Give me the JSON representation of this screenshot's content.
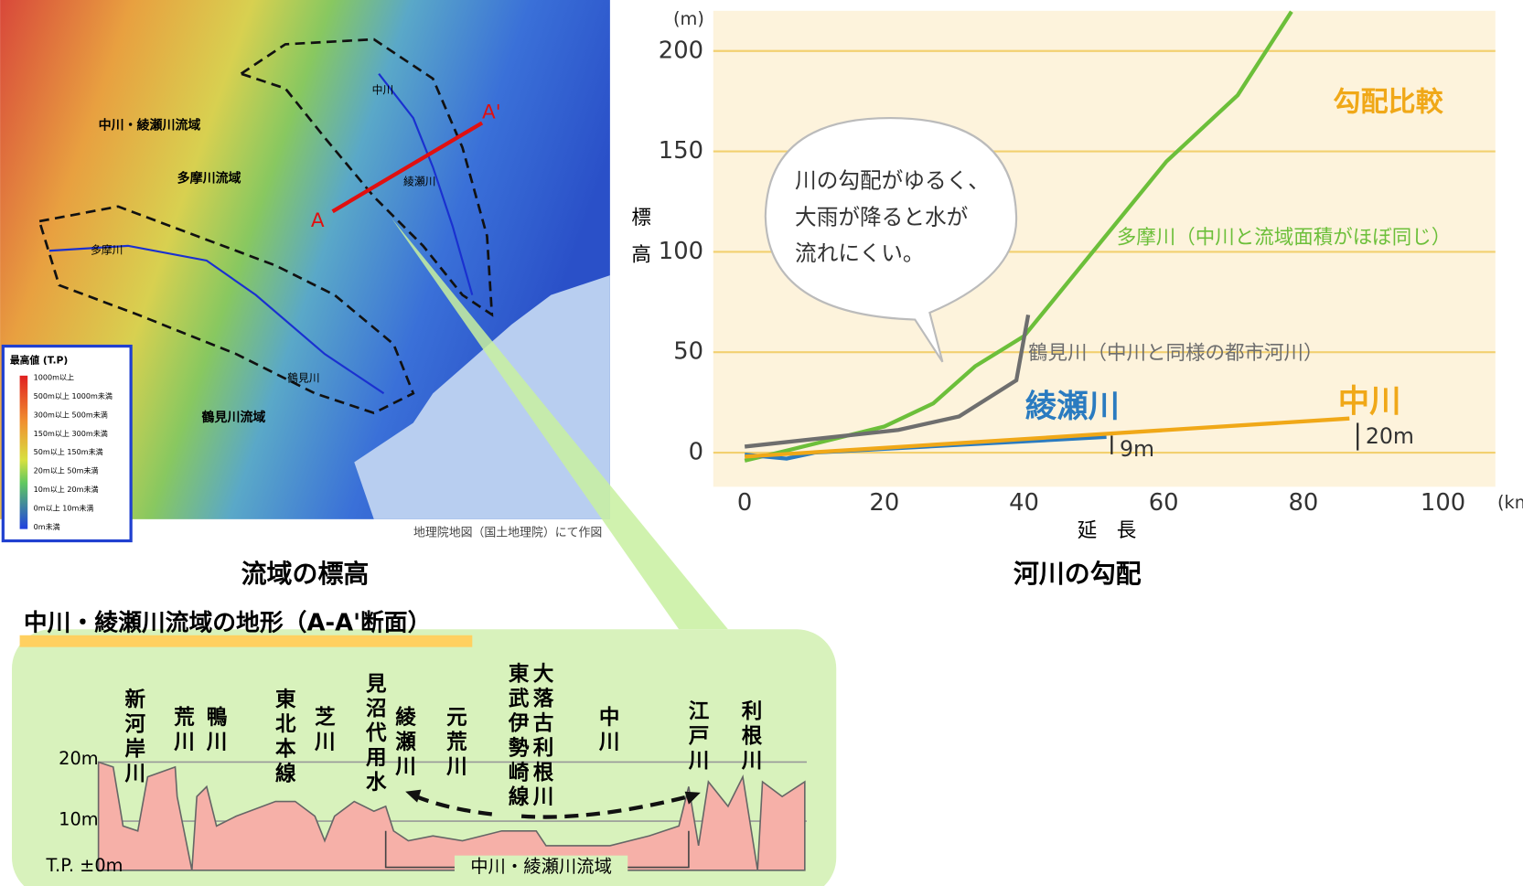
{
  "chart_data": {
    "type": "line",
    "title": "勾配比較",
    "caption": "河川の勾配",
    "y_label": "標高",
    "x_label": "延　長",
    "y_unit": "(m)",
    "x_unit": "(km)",
    "xlim": [
      -4.5,
      107.5
    ],
    "xticks": [
      0,
      20,
      40,
      60,
      80,
      100
    ],
    "ylim": [
      -17,
      220
    ],
    "yticks": [
      0,
      50,
      100,
      150,
      200
    ],
    "grid": true,
    "series": [
      {
        "name": "多摩川（中川と流域面積がほぼ同じ）",
        "color": "#6cbf3a",
        "x": [
          0,
          6,
          20,
          27,
          33,
          40,
          60.4,
          70.6,
          78.3
        ],
        "values": [
          -4,
          1,
          13,
          24.5,
          43,
          58,
          145,
          178,
          219.6
        ]
      },
      {
        "name": "鶴見川（中川と同様の都市河川）",
        "color": "#6e6e6e",
        "x": [
          0,
          22,
          30.7,
          38.9,
          40.6
        ],
        "values": [
          3,
          11.3,
          18,
          36,
          68.6
        ]
      },
      {
        "name": "綾瀬川",
        "color": "#2a7bc0",
        "x": [
          0,
          6,
          10,
          51.8
        ],
        "values": [
          -1,
          -3,
          0,
          7.8
        ]
      },
      {
        "name": "中川",
        "color": "#f0a818",
        "x": [
          0,
          86.6
        ],
        "values": [
          -2,
          17
        ]
      }
    ],
    "annotations": [
      "9m",
      "20m"
    ],
    "callout": [
      "川の勾配がゆるく、",
      "大雨が降ると水が",
      "流れにくい。"
    ]
  },
  "map": {
    "caption": "流域の標高",
    "credit": "地理院地図（国土地理院）にて作図",
    "labels": [
      "中川・綾瀬川流域",
      "多摩川流域",
      "多摩川",
      "鶴見川",
      "鶴見川流域",
      "中川",
      "綾瀬川",
      "A",
      "A'"
    ],
    "legend": {
      "title": "最高値 (T.P)",
      "items": [
        "1000m以上",
        "500m以上 1000m未満",
        "300m以上 500m未満",
        "150m以上 300m未満",
        "50m以上 150m未満",
        "20m以上 50m未満",
        "10m以上 20m未満",
        "0m以上 10m未満",
        "0m未満"
      ]
    }
  },
  "section": {
    "title": "中川・綾瀬川流域の地形（A-A'断面）",
    "rivers": [
      "新河岸川",
      "荒川",
      "鴨川",
      "東北本線",
      "芝川",
      "見沼代用水",
      "綾瀬川",
      "元荒川",
      "東武伊勢崎線",
      "大落古利根川",
      "中川",
      "江戸川",
      "利根川"
    ],
    "levels": [
      "20m",
      "10m",
      "T.P. ±0m"
    ],
    "basin": "中川・綾瀬川流域"
  }
}
